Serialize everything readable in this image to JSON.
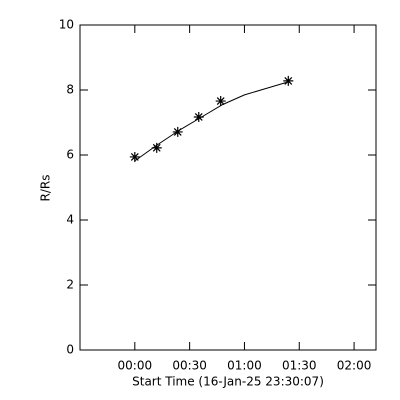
{
  "chart_data": {
    "type": "scatter",
    "xlabel": "Start Time (16-Jan-25 23:30:07)",
    "ylabel": "R/Rs",
    "xlim": [
      -30,
      132
    ],
    "ylim": [
      0,
      10
    ],
    "xticks": [
      {
        "value": 0,
        "label": "00:00"
      },
      {
        "value": 30,
        "label": "00:30"
      },
      {
        "value": 60,
        "label": "01:00"
      },
      {
        "value": 90,
        "label": "01:30"
      },
      {
        "value": 120,
        "label": "02:00"
      }
    ],
    "yticks": [
      0,
      2,
      4,
      6,
      8,
      10
    ],
    "series": [
      {
        "style": "marker",
        "marker": "asterisk",
        "color": "#000000",
        "x": [
          0,
          12,
          23.5,
          35,
          47,
          84
        ],
        "values": [
          5.94,
          6.22,
          6.71,
          7.17,
          7.66,
          8.28
        ]
      },
      {
        "style": "line",
        "color": "#000000",
        "x": [
          0,
          12,
          24,
          36,
          48,
          60,
          72,
          84
        ],
        "values": [
          5.82,
          6.3,
          6.75,
          7.15,
          7.55,
          7.85,
          8.05,
          8.25
        ]
      }
    ]
  }
}
